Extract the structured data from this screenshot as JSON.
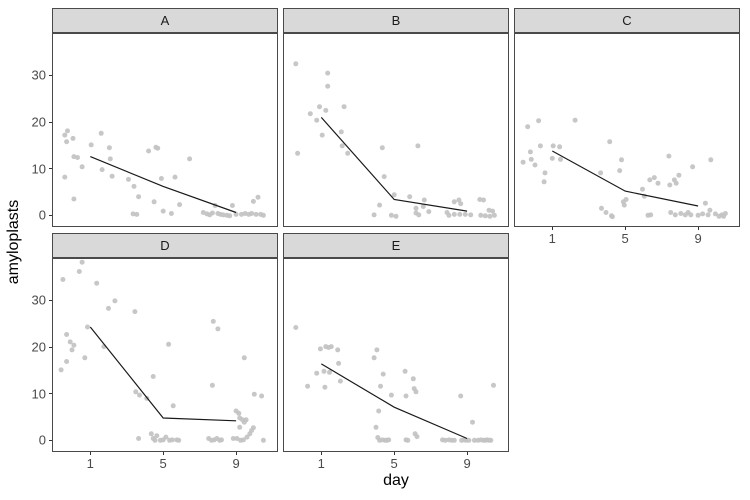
{
  "chart_data": {
    "type": "scatter",
    "title": "",
    "xlabel": "day",
    "ylabel": "amyloplasts",
    "x_ticks": [
      "1",
      "5",
      "9"
    ],
    "y_ticks": [
      "0",
      "10",
      "20",
      "30"
    ],
    "x_tick_values": [
      1,
      5,
      9
    ],
    "y_tick_values": [
      0,
      10,
      20,
      30
    ],
    "x_range": [
      -1.1,
      11.3
    ],
    "y_range": [
      -2.5,
      39.1
    ],
    "grid": false,
    "legend": false,
    "layout": "facet_wrap 2 rows x 3 cols, last cell empty",
    "facets": [
      {
        "label": "A",
        "row": 0,
        "col": 0,
        "y_axis": true,
        "x_axis": false,
        "trend": [
          [
            1,
            12.6
          ],
          [
            5,
            6.2
          ],
          [
            9,
            0.6
          ]
        ],
        "points": [
          [
            -0.4,
            17.2
          ],
          [
            -0.25,
            18.1
          ],
          [
            -0.3,
            15.8
          ],
          [
            0.05,
            16.5
          ],
          [
            0.1,
            12.6
          ],
          [
            0.3,
            12.4
          ],
          [
            0.55,
            10.4
          ],
          [
            -0.4,
            8.2
          ],
          [
            0.1,
            3.5
          ],
          [
            1.05,
            15.1
          ],
          [
            1.6,
            17.6
          ],
          [
            1.65,
            9.8
          ],
          [
            2.05,
            14.5
          ],
          [
            2.1,
            12.1
          ],
          [
            2.2,
            8.4
          ],
          [
            3.1,
            7.7
          ],
          [
            3.4,
            6.2
          ],
          [
            3.65,
            4.0
          ],
          [
            3.35,
            0.3
          ],
          [
            3.55,
            0.2
          ],
          [
            4.2,
            13.8
          ],
          [
            4.6,
            14.6
          ],
          [
            4.7,
            14.4
          ],
          [
            4.5,
            2.9
          ],
          [
            4.9,
            7.9
          ],
          [
            5.0,
            0.9
          ],
          [
            5.45,
            0.4
          ],
          [
            5.65,
            8.2
          ],
          [
            5.9,
            2.3
          ],
          [
            6.45,
            12.1
          ],
          [
            7.2,
            0.6
          ],
          [
            7.4,
            0.3
          ],
          [
            7.55,
            0.1
          ],
          [
            7.7,
            0.5
          ],
          [
            7.85,
            2.1
          ],
          [
            8.0,
            0.4
          ],
          [
            8.15,
            0.2
          ],
          [
            8.3,
            0.1
          ],
          [
            8.5,
            0.0
          ],
          [
            8.65,
            -0.1
          ],
          [
            8.8,
            2.1
          ],
          [
            9.0,
            0.2
          ],
          [
            9.3,
            0.2
          ],
          [
            9.5,
            0.4
          ],
          [
            9.7,
            0.2
          ],
          [
            9.85,
            0.4
          ],
          [
            9.95,
            3.0
          ],
          [
            10.2,
            3.9
          ],
          [
            10.1,
            0.2
          ],
          [
            10.35,
            0.2
          ],
          [
            10.5,
            0.0
          ]
        ]
      },
      {
        "label": "B",
        "row": 0,
        "col": 1,
        "y_axis": false,
        "x_axis": false,
        "trend": [
          [
            1,
            21.0
          ],
          [
            5,
            3.4
          ],
          [
            9,
            0.9
          ]
        ],
        "points": [
          [
            -0.4,
            32.5
          ],
          [
            1.35,
            30.5
          ],
          [
            1.35,
            27.7
          ],
          [
            0.9,
            23.3
          ],
          [
            0.4,
            21.8
          ],
          [
            1.25,
            22.5
          ],
          [
            2.25,
            23.3
          ],
          [
            0.75,
            20.4
          ],
          [
            1.05,
            17.2
          ],
          [
            2.1,
            17.9
          ],
          [
            2.15,
            14.9
          ],
          [
            2.45,
            13.3
          ],
          [
            -0.3,
            13.3
          ],
          [
            4.35,
            14.5
          ],
          [
            6.3,
            14.9
          ],
          [
            4.45,
            8.3
          ],
          [
            5.0,
            4.4
          ],
          [
            5.85,
            4.0
          ],
          [
            4.2,
            2.2
          ],
          [
            4.85,
            0.0
          ],
          [
            5.1,
            -0.2
          ],
          [
            3.9,
            0.1
          ],
          [
            6.65,
            3.3
          ],
          [
            6.6,
            1.9
          ],
          [
            6.2,
            1.5
          ],
          [
            6.2,
            0.5
          ],
          [
            6.35,
            0.1
          ],
          [
            6.9,
            0.8
          ],
          [
            8.3,
            2.9
          ],
          [
            8.55,
            3.3
          ],
          [
            8.65,
            2.5
          ],
          [
            7.9,
            0.6
          ],
          [
            8.0,
            0.0
          ],
          [
            8.3,
            0.2
          ],
          [
            8.6,
            0.2
          ],
          [
            8.9,
            0.2
          ],
          [
            9.2,
            0.1
          ],
          [
            9.7,
            3.4
          ],
          [
            9.9,
            3.3
          ],
          [
            10.2,
            1.1
          ],
          [
            10.4,
            0.9
          ],
          [
            9.75,
            0.0
          ],
          [
            10.0,
            -0.1
          ],
          [
            10.25,
            -0.2
          ],
          [
            10.5,
            0.0
          ]
        ]
      },
      {
        "label": "C",
        "row": 0,
        "col": 2,
        "y_axis": false,
        "x_axis": true,
        "trend": [
          [
            1,
            13.8
          ],
          [
            5,
            5.2
          ],
          [
            9,
            2.0
          ]
        ],
        "points": [
          [
            -0.35,
            19.0
          ],
          [
            0.25,
            20.3
          ],
          [
            0.35,
            14.9
          ],
          [
            -0.2,
            13.6
          ],
          [
            -0.15,
            12.0
          ],
          [
            -0.6,
            11.4
          ],
          [
            0.05,
            10.8
          ],
          [
            0.6,
            9.1
          ],
          [
            0.55,
            7.2
          ],
          [
            1.05,
            14.9
          ],
          [
            1.4,
            14.7
          ],
          [
            1.0,
            12.2
          ],
          [
            1.45,
            12.0
          ],
          [
            2.25,
            20.4
          ],
          [
            4.15,
            15.8
          ],
          [
            3.65,
            9.1
          ],
          [
            4.8,
            11.9
          ],
          [
            4.7,
            9.6
          ],
          [
            3.7,
            1.5
          ],
          [
            3.95,
            0.6
          ],
          [
            4.25,
            -0.1
          ],
          [
            4.3,
            -0.3
          ],
          [
            4.9,
            2.9
          ],
          [
            4.95,
            2.2
          ],
          [
            5.05,
            3.4
          ],
          [
            5.95,
            5.6
          ],
          [
            6.05,
            4.1
          ],
          [
            6.25,
            0.0
          ],
          [
            6.4,
            0.1
          ],
          [
            6.35,
            7.6
          ],
          [
            6.6,
            8.1
          ],
          [
            6.8,
            6.9
          ],
          [
            7.4,
            12.7
          ],
          [
            7.45,
            6.5
          ],
          [
            7.7,
            7.6
          ],
          [
            7.8,
            6.9
          ],
          [
            7.95,
            8.6
          ],
          [
            7.5,
            0.6
          ],
          [
            7.75,
            0.1
          ],
          [
            8.05,
            0.4
          ],
          [
            8.3,
            0.1
          ],
          [
            8.45,
            0.6
          ],
          [
            8.6,
            0.1
          ],
          [
            8.7,
            10.4
          ],
          [
            9.0,
            0.0
          ],
          [
            9.25,
            0.3
          ],
          [
            9.4,
            2.6
          ],
          [
            9.55,
            0.1
          ],
          [
            9.7,
            11.9
          ],
          [
            9.65,
            1.1
          ],
          [
            9.95,
            0.3
          ],
          [
            10.15,
            -0.2
          ],
          [
            10.3,
            0.1
          ],
          [
            10.4,
            -0.2
          ],
          [
            10.5,
            0.4
          ]
        ]
      },
      {
        "label": "D",
        "row": 1,
        "col": 0,
        "y_axis": true,
        "x_axis": true,
        "trend": [
          [
            1,
            24.3
          ],
          [
            5,
            4.8
          ],
          [
            9,
            4.2
          ]
        ],
        "points": [
          [
            -0.5,
            34.5
          ],
          [
            0.4,
            36.2
          ],
          [
            0.55,
            38.2
          ],
          [
            1.35,
            33.7
          ],
          [
            2.0,
            28.3
          ],
          [
            2.35,
            29.9
          ],
          [
            3.45,
            27.6
          ],
          [
            -0.3,
            22.7
          ],
          [
            -0.1,
            21.1
          ],
          [
            0.1,
            20.4
          ],
          [
            0.0,
            19.4
          ],
          [
            -0.3,
            16.9
          ],
          [
            0.7,
            17.7
          ],
          [
            0.85,
            24.3
          ],
          [
            -0.6,
            15.1
          ],
          [
            1.75,
            20.1
          ],
          [
            4.45,
            13.7
          ],
          [
            3.5,
            10.4
          ],
          [
            3.7,
            9.7
          ],
          [
            4.1,
            9.0
          ],
          [
            5.3,
            20.6
          ],
          [
            5.55,
            7.4
          ],
          [
            3.65,
            0.4
          ],
          [
            4.35,
            1.4
          ],
          [
            4.45,
            0.4
          ],
          [
            4.55,
            0.0
          ],
          [
            4.65,
            1.0
          ],
          [
            4.85,
            0.0
          ],
          [
            5.0,
            0.1
          ],
          [
            5.15,
            0.7
          ],
          [
            5.35,
            0.0
          ],
          [
            5.5,
            0.1
          ],
          [
            5.75,
            0.1
          ],
          [
            5.85,
            0.0
          ],
          [
            7.75,
            25.5
          ],
          [
            8.0,
            23.9
          ],
          [
            7.7,
            11.8
          ],
          [
            7.5,
            0.4
          ],
          [
            7.65,
            0.0
          ],
          [
            7.8,
            0.1
          ],
          [
            7.95,
            0.4
          ],
          [
            8.1,
            0.0
          ],
          [
            8.2,
            0.1
          ],
          [
            8.85,
            0.4
          ],
          [
            9.45,
            17.7
          ],
          [
            9.0,
            6.3
          ],
          [
            9.15,
            5.8
          ],
          [
            9.2,
            4.8
          ],
          [
            9.35,
            4.4
          ],
          [
            9.45,
            3.9
          ],
          [
            9.55,
            4.4
          ],
          [
            9.2,
            2.8
          ],
          [
            9.05,
            0.4
          ],
          [
            9.25,
            0.0
          ],
          [
            9.4,
            0.1
          ],
          [
            9.6,
            0.7
          ],
          [
            9.75,
            1.4
          ],
          [
            9.85,
            2.1
          ],
          [
            9.95,
            2.7
          ],
          [
            10.4,
            9.5
          ],
          [
            10.0,
            9.9
          ],
          [
            10.5,
            0.0
          ]
        ]
      },
      {
        "label": "E",
        "row": 1,
        "col": 1,
        "y_axis": false,
        "x_axis": true,
        "trend": [
          [
            1,
            16.4
          ],
          [
            5,
            7.1
          ],
          [
            9,
            0.4
          ]
        ],
        "points": [
          [
            -0.4,
            24.2
          ],
          [
            0.95,
            19.6
          ],
          [
            1.25,
            20.1
          ],
          [
            1.4,
            19.9
          ],
          [
            1.55,
            20.1
          ],
          [
            1.9,
            19.4
          ],
          [
            0.75,
            14.4
          ],
          [
            1.15,
            14.8
          ],
          [
            1.45,
            14.6
          ],
          [
            0.25,
            11.6
          ],
          [
            1.2,
            11.4
          ],
          [
            1.95,
            16.5
          ],
          [
            2.05,
            12.7
          ],
          [
            3.9,
            17.7
          ],
          [
            4.05,
            19.4
          ],
          [
            4.4,
            14.2
          ],
          [
            4.25,
            11.6
          ],
          [
            4.85,
            9.7
          ],
          [
            4.15,
            6.3
          ],
          [
            4.0,
            2.8
          ],
          [
            4.1,
            0.6
          ],
          [
            4.2,
            0.0
          ],
          [
            4.35,
            0.1
          ],
          [
            4.5,
            0.0
          ],
          [
            4.6,
            0.0
          ],
          [
            4.7,
            0.1
          ],
          [
            5.6,
            14.8
          ],
          [
            5.65,
            9.5
          ],
          [
            6.05,
            13.2
          ],
          [
            6.1,
            11.1
          ],
          [
            6.2,
            10.4
          ],
          [
            5.65,
            0.1
          ],
          [
            5.75,
            0.0
          ],
          [
            6.15,
            1.4
          ],
          [
            6.25,
            0.8
          ],
          [
            7.65,
            0.1
          ],
          [
            7.8,
            0.0
          ],
          [
            8.0,
            0.1
          ],
          [
            8.15,
            0.0
          ],
          [
            8.3,
            0.0
          ],
          [
            8.65,
            9.5
          ],
          [
            8.7,
            0.0
          ],
          [
            8.85,
            0.1
          ],
          [
            8.95,
            0.0
          ],
          [
            9.1,
            0.0
          ],
          [
            9.3,
            3.9
          ],
          [
            9.4,
            0.0
          ],
          [
            9.6,
            0.0
          ],
          [
            9.75,
            0.1
          ],
          [
            9.9,
            0.0
          ],
          [
            10.0,
            0.0
          ],
          [
            10.1,
            0.1
          ],
          [
            10.2,
            0.0
          ],
          [
            10.45,
            11.8
          ],
          [
            10.3,
            0.0
          ]
        ]
      }
    ],
    "colors": {
      "point": "#c2c2c2",
      "trend_line": "#1a1a1a",
      "strip_bg": "#d9d9d9",
      "panel_border": "#4a4a4a",
      "tick_text": "#4a4a4a",
      "axis_title_text": "#000000",
      "background": "#ffffff"
    }
  }
}
